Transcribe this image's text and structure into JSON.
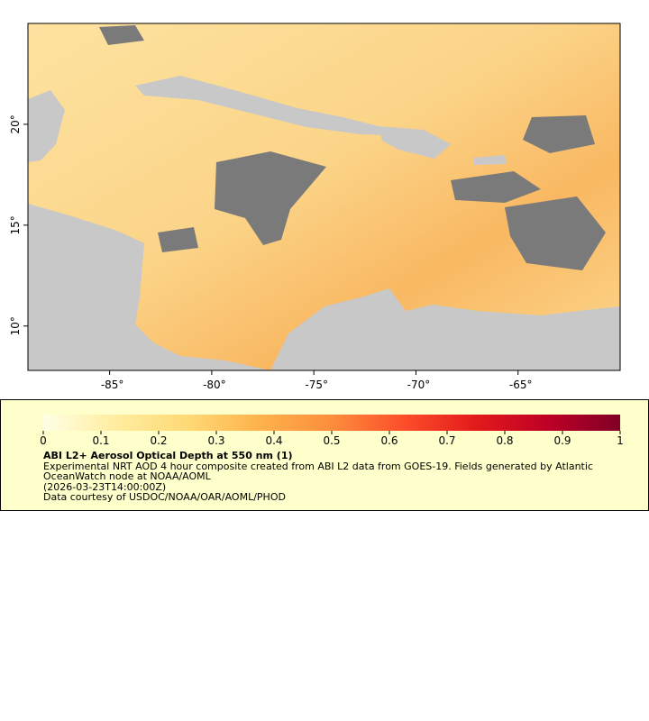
{
  "map": {
    "xlim": [
      -89,
      -60
    ],
    "ylim": [
      7.8,
      25
    ],
    "xticks": [
      {
        "value": -85,
        "label": "-85°"
      },
      {
        "value": -80,
        "label": "-80°"
      },
      {
        "value": -75,
        "label": "-75°"
      },
      {
        "value": -70,
        "label": "-70°"
      },
      {
        "value": -65,
        "label": "-65°"
      }
    ],
    "yticks": [
      {
        "value": 10,
        "label": "10°"
      },
      {
        "value": 15,
        "label": "15°"
      },
      {
        "value": 20,
        "label": "20°"
      }
    ]
  },
  "legend": {
    "colorbar": {
      "lim": [
        0,
        1
      ],
      "ticks": [
        0,
        0.1,
        0.2,
        0.3,
        0.4,
        0.5,
        0.6,
        0.7,
        0.8,
        0.9,
        1
      ],
      "colors": [
        "#ffffe6",
        "#ffeda0",
        "#fed976",
        "#feb24c",
        "#fd8d3c",
        "#fc4e2a",
        "#e31a1c",
        "#bd0026",
        "#800026"
      ]
    },
    "title": "ABI L2+ Aerosol Optical Depth at 550 nm (1)",
    "description": "Experimental NRT AOD 4 hour composite created from ABI L2 data from GOES-19. Fields generated by Atlantic OceanWatch node at NOAA/AOML",
    "time": "(2026-03-23T14:00:00Z)",
    "credit": "Data courtesy of USDOC/NOAA/OAR/AOML/PHOD"
  }
}
